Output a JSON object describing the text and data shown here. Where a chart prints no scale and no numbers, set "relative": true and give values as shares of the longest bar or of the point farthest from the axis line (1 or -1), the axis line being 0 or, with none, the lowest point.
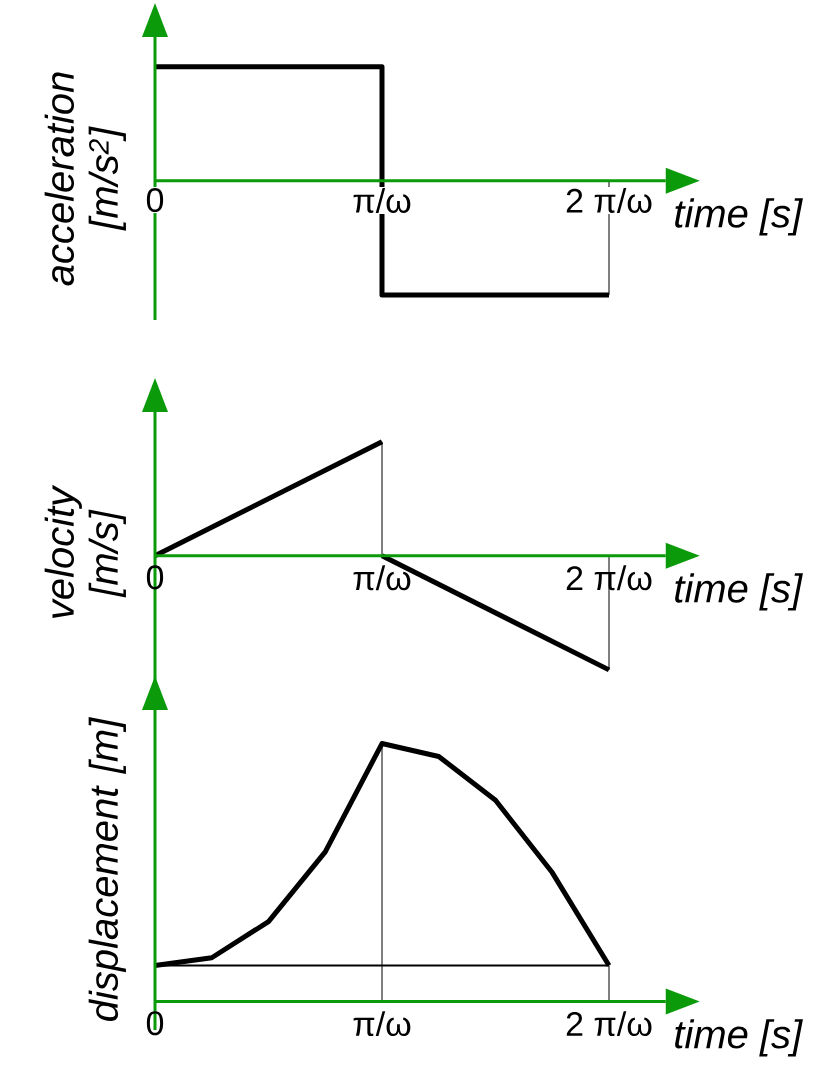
{
  "chart_data": [
    {
      "type": "line",
      "relative": true,
      "xlabel": "time [s]",
      "ylabel": "acceleration [m/s$^{2}$]",
      "xlim": [
        0,
        2.25
      ],
      "xticks": [
        {
          "value": 0,
          "label": "0"
        },
        {
          "value": 1,
          "label": "π/ω"
        },
        {
          "value": 2,
          "label": "2 π/ω"
        }
      ],
      "series": [
        {
          "type": "step",
          "color": "#000000",
          "x": [
            0,
            1,
            2
          ],
          "values": [
            1,
            -1,
            -1
          ]
        }
      ],
      "ref_lines": [
        {
          "axis": "x",
          "value": 2,
          "color": "#000000"
        }
      ]
    },
    {
      "type": "line",
      "relative": true,
      "xlabel": "time [s]",
      "ylabel": "velocity [m/s]",
      "xlim": [
        0,
        2.25
      ],
      "xticks": [
        {
          "value": 0,
          "label": "0"
        },
        {
          "value": 1,
          "label": "π/ω"
        },
        {
          "value": 2,
          "label": "2 π/ω"
        }
      ],
      "series": [
        {
          "color": "#000000",
          "x": [
            0,
            1
          ],
          "values": [
            0,
            1
          ]
        },
        {
          "color": "#000000",
          "x": [
            1,
            2
          ],
          "values": [
            0,
            -1
          ]
        }
      ],
      "ref_lines": [
        {
          "axis": "x",
          "value": 1,
          "color": "#000000"
        },
        {
          "axis": "x",
          "value": 2,
          "color": "#000000"
        }
      ]
    },
    {
      "type": "line",
      "relative": true,
      "xlabel": "time [s]",
      "ylabel": "displacement [m]",
      "xlim": [
        0,
        2.25
      ],
      "xticks": [
        {
          "value": 0,
          "label": "0"
        },
        {
          "value": 1,
          "label": "π/ω"
        },
        {
          "value": 2,
          "label": "2 π/ω"
        }
      ],
      "series": [
        {
          "color": "#000000",
          "x": [
            0,
            0.25,
            0.5,
            0.75,
            1,
            1.25,
            1.5,
            1.75,
            2
          ],
          "values": [
            0.14,
            0.17,
            0.31,
            0.58,
            1,
            0.95,
            0.78,
            0.5,
            0.14
          ]
        }
      ],
      "ref_lines": [
        {
          "axis": "x",
          "value": 1,
          "color": "#000000"
        },
        {
          "axis": "x",
          "value": 2,
          "color": "#000000"
        },
        {
          "axis": "y",
          "value": 0.14,
          "color": "#000000"
        }
      ]
    }
  ]
}
